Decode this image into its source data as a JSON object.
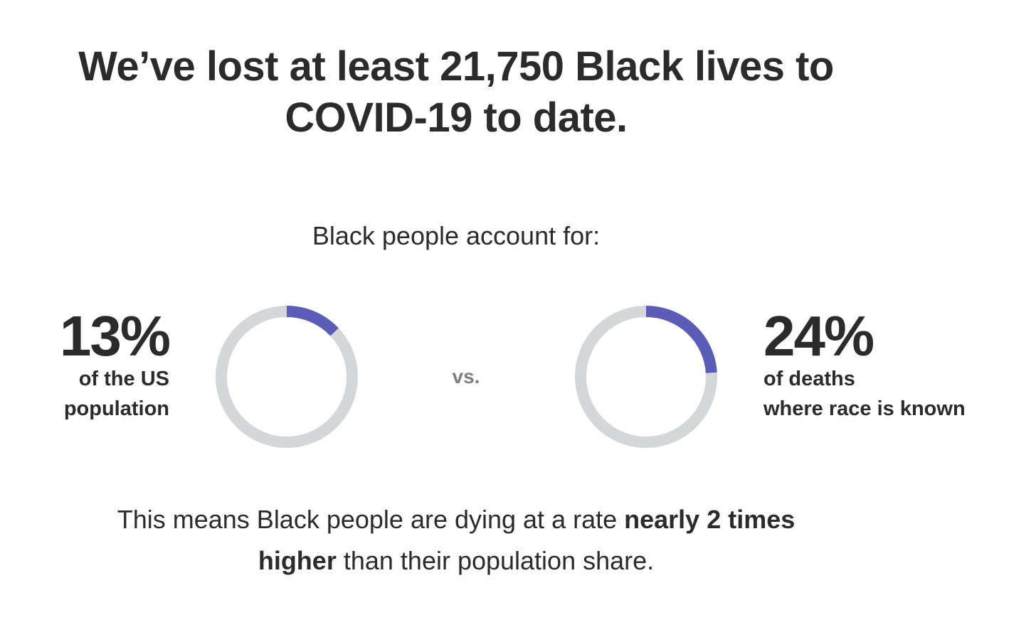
{
  "headline": {
    "line1": "We’ve lost at least 21,750 Black lives to",
    "line2": "COVID-19 to date."
  },
  "lead": "Black people account for:",
  "comparison_label": "vs.",
  "chart_data": [
    {
      "type": "pie",
      "style": "donut",
      "value_label": "13%",
      "value": 13,
      "description_lines": [
        "of the US",
        "population"
      ],
      "fill_color": "#5b5bb8",
      "track_color": "#d4d6d8"
    },
    {
      "type": "pie",
      "style": "donut",
      "value_label": "24%",
      "value": 24,
      "description_lines": [
        "of deaths",
        "where race is known"
      ],
      "fill_color": "#5b5bb8",
      "track_color": "#d4d6d8"
    }
  ],
  "footnote": {
    "line1_plain": "This means Black people are dying at a rate ",
    "line1_bold": "nearly 2 times",
    "line2_bold": "higher",
    "line2_plain": " than their population share."
  }
}
